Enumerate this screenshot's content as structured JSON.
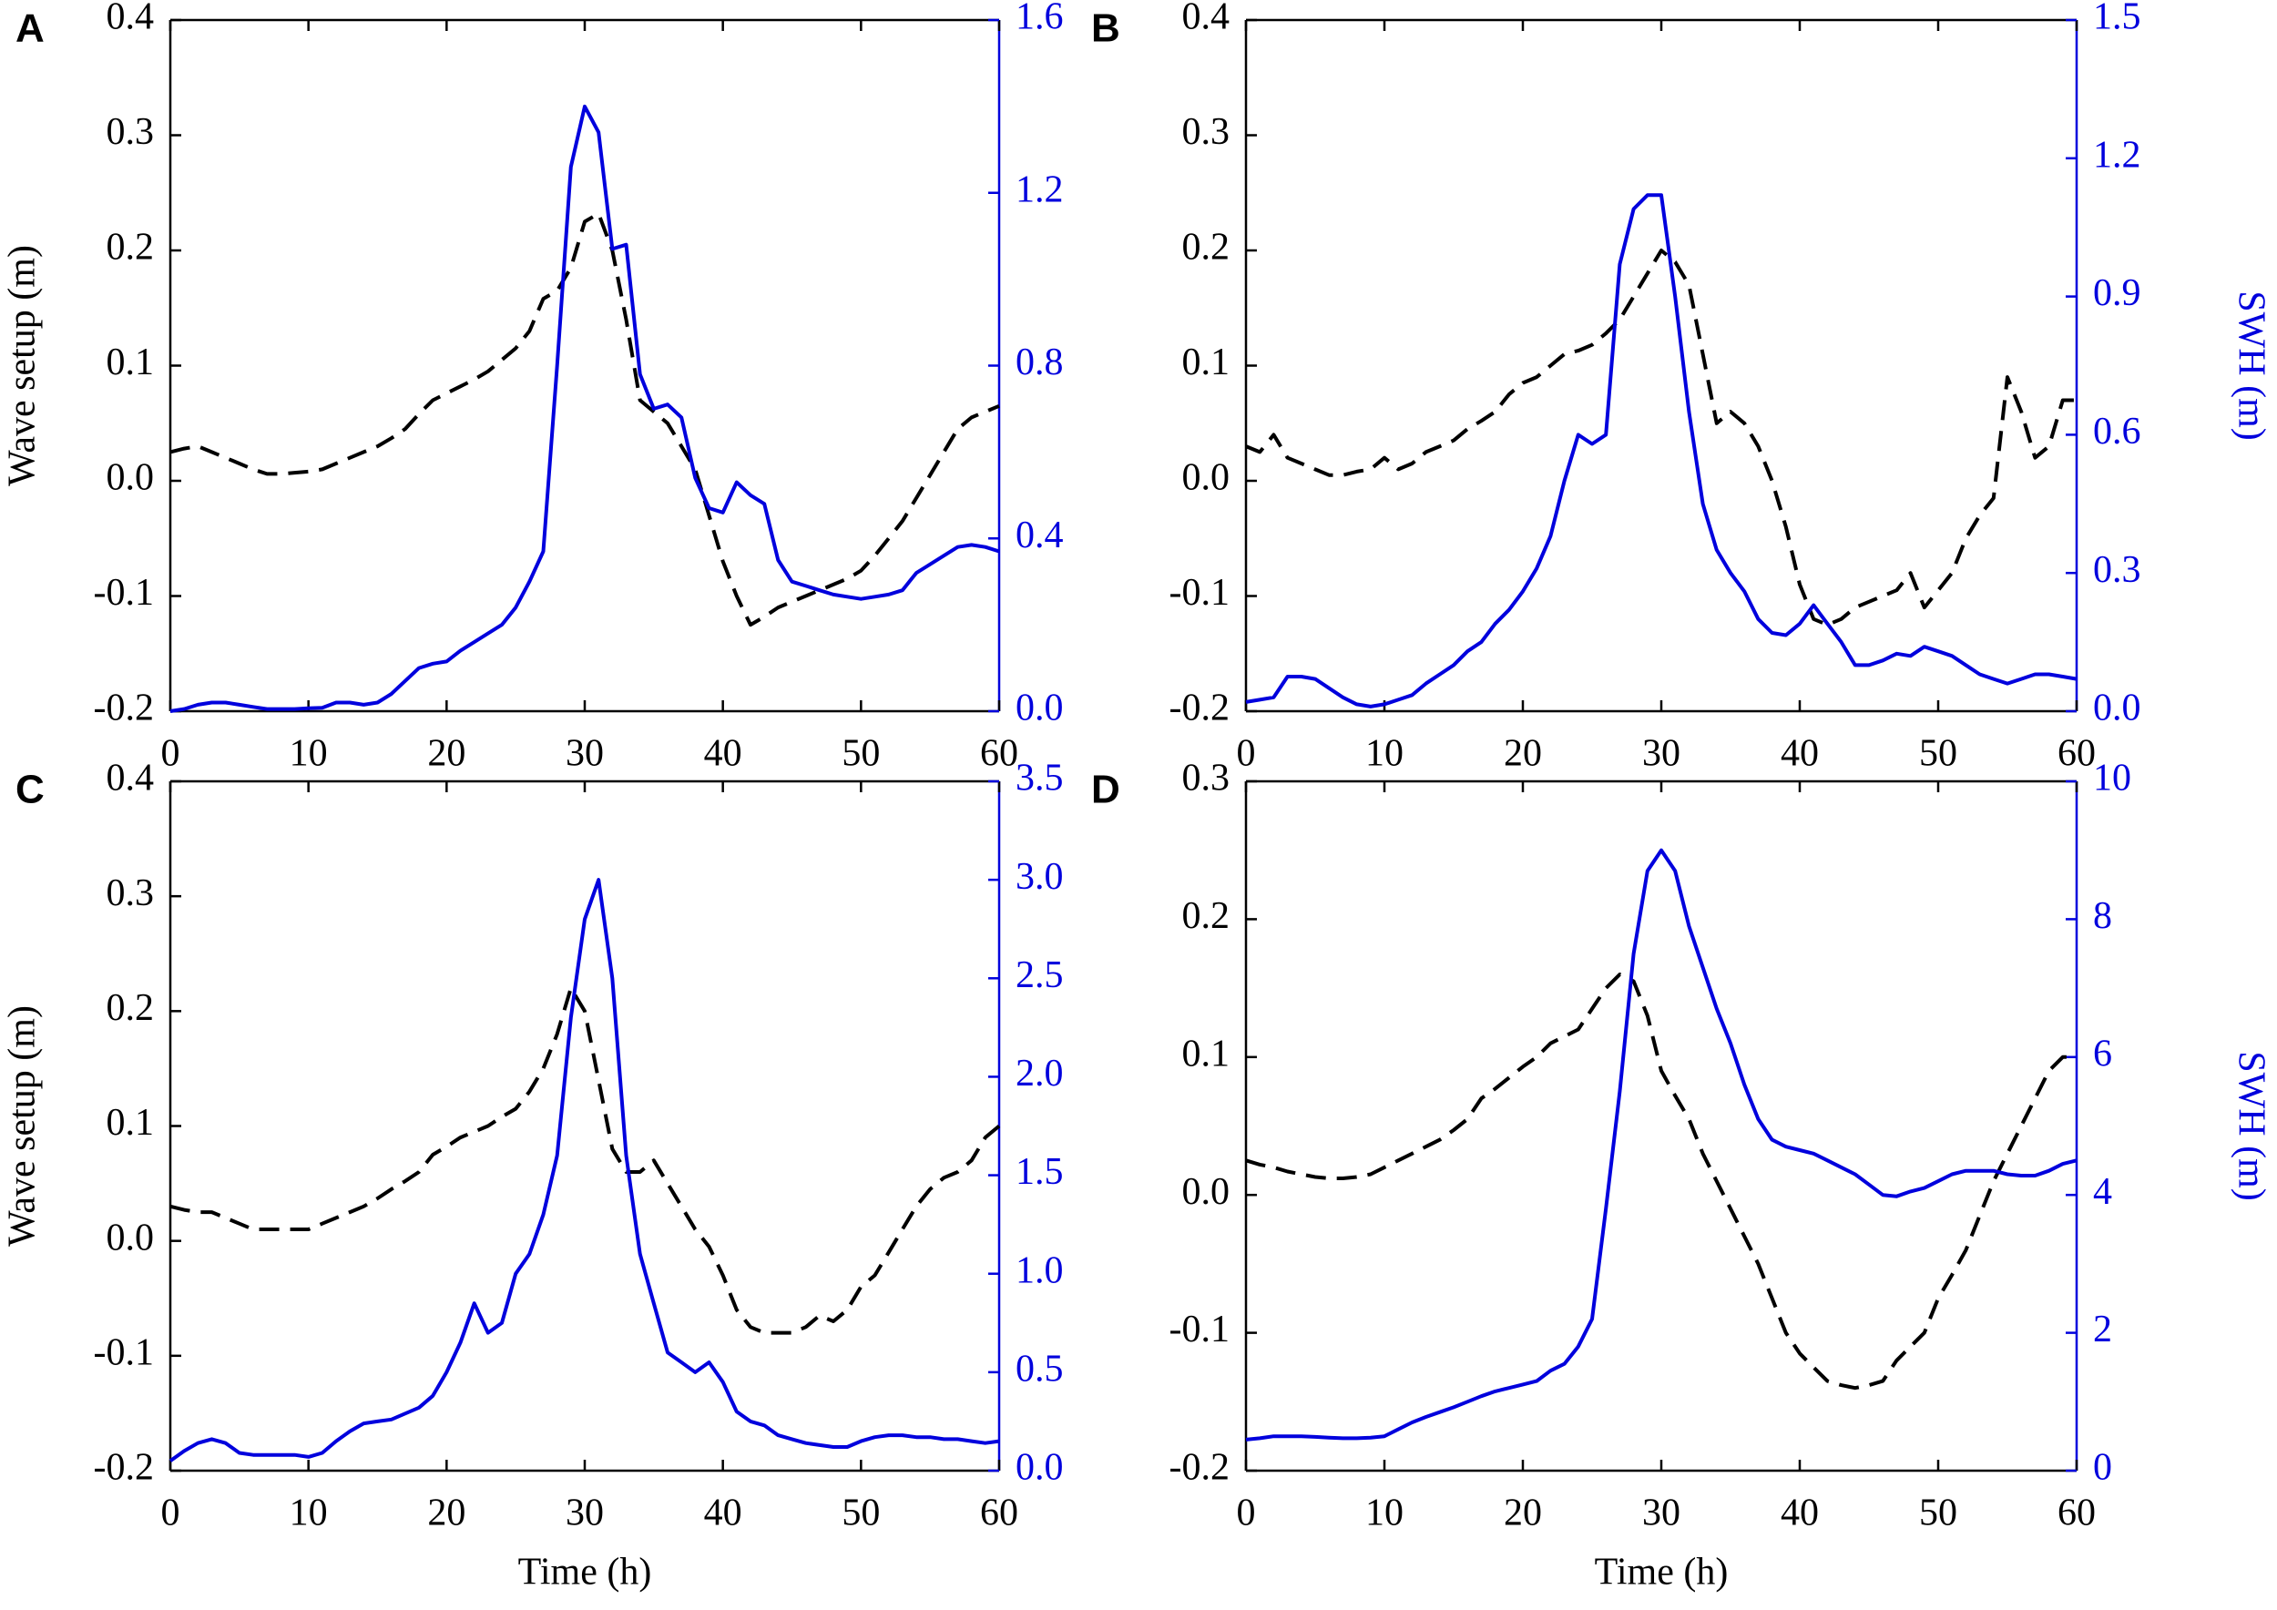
{
  "chart_data": [
    {
      "type": "line",
      "title": "A",
      "ylabel": "Wave setup (m)",
      "x": [
        0,
        1,
        2,
        3,
        4,
        5,
        6,
        7,
        8,
        9,
        10,
        11,
        12,
        13,
        14,
        15,
        16,
        17,
        18,
        19,
        20,
        21,
        22,
        23,
        24,
        25,
        26,
        27,
        28,
        29,
        30,
        31,
        32,
        33,
        34,
        35,
        36,
        37,
        38,
        39,
        40,
        41,
        42,
        43,
        44,
        45,
        46,
        47,
        48,
        49,
        50,
        51,
        52,
        53,
        54,
        55,
        56,
        57,
        58,
        59,
        60
      ],
      "xlim": [
        0,
        60
      ],
      "xticks": [
        0,
        10,
        20,
        30,
        40,
        50,
        60
      ],
      "ylim": [
        -0.2,
        0.4
      ],
      "yticks": [
        -0.2,
        -0.1,
        {
          "value": 0,
          "label": "0.0"
        },
        0.1,
        0.2,
        0.3,
        0.4
      ],
      "y2lim": [
        0,
        1.6
      ],
      "y2ticks": [
        {
          "value": 0,
          "label": "0.0"
        },
        0.4,
        0.8,
        1.2,
        1.6
      ],
      "series": [
        {
          "color": "#000000",
          "style": "dashed",
          "values": [
            0.025,
            0.028,
            0.03,
            0.025,
            0.02,
            0.015,
            0.01,
            0.006,
            0.006,
            0.007,
            0.008,
            0.01,
            0.015,
            0.02,
            0.025,
            0.03,
            0.037,
            0.045,
            0.058,
            0.07,
            0.076,
            0.082,
            0.088,
            0.095,
            0.105,
            0.115,
            0.13,
            0.158,
            0.165,
            0.185,
            0.225,
            0.232,
            0.2,
            0.14,
            0.07,
            0.06,
            0.05,
            0.03,
            0.01,
            -0.03,
            -0.07,
            -0.1,
            -0.125,
            -0.118,
            -0.11,
            -0.105,
            -0.1,
            -0.095,
            -0.09,
            -0.085,
            -0.078,
            -0.065,
            -0.05,
            -0.035,
            -0.015,
            0.005,
            0.025,
            0.045,
            0.055,
            0.06,
            0.065
          ]
        },
        {
          "color": "#0000dd",
          "style": "solid",
          "axis": "y2",
          "values": [
            0,
            0.005,
            0.015,
            0.02,
            0.02,
            0.015,
            0.01,
            0.005,
            0.005,
            0.005,
            0.007,
            0.008,
            0.02,
            0.02,
            0.015,
            0.02,
            0.04,
            0.07,
            0.1,
            0.11,
            0.115,
            0.14,
            0.16,
            0.18,
            0.2,
            0.24,
            0.3,
            0.37,
            0.8,
            1.26,
            1.4,
            1.34,
            1.07,
            1.08,
            0.78,
            0.7,
            0.71,
            0.68,
            0.54,
            0.47,
            0.46,
            0.53,
            0.5,
            0.48,
            0.35,
            0.3,
            0.29,
            0.28,
            0.27,
            0.265,
            0.26,
            0.265,
            0.27,
            0.28,
            0.32,
            0.34,
            0.36,
            0.38,
            0.385,
            0.38,
            0.37
          ]
        }
      ]
    },
    {
      "type": "line",
      "title": "B",
      "y2label": "SWH (m)",
      "x": [
        0,
        1,
        2,
        3,
        4,
        5,
        6,
        7,
        8,
        9,
        10,
        11,
        12,
        13,
        14,
        15,
        16,
        17,
        18,
        19,
        20,
        21,
        22,
        23,
        24,
        25,
        26,
        27,
        28,
        29,
        30,
        31,
        32,
        33,
        34,
        35,
        36,
        37,
        38,
        39,
        40,
        41,
        42,
        43,
        44,
        45,
        46,
        47,
        48,
        49,
        50,
        51,
        52,
        53,
        54,
        55,
        56,
        57,
        58,
        59,
        60
      ],
      "xlim": [
        0,
        60
      ],
      "xticks": [
        0,
        10,
        20,
        30,
        40,
        50,
        60
      ],
      "ylim": [
        -0.2,
        0.4
      ],
      "yticks": [
        -0.2,
        -0.1,
        {
          "value": 0,
          "label": "0.0"
        },
        0.1,
        0.2,
        0.3,
        0.4
      ],
      "y2lim": [
        0,
        1.5
      ],
      "y2ticks": [
        {
          "value": 0,
          "label": "0.0"
        },
        0.3,
        0.6,
        0.9,
        1.2,
        1.5
      ],
      "series": [
        {
          "color": "#000000",
          "style": "dashed",
          "values": [
            0.03,
            0.025,
            0.04,
            0.02,
            0.015,
            0.01,
            0.005,
            0.005,
            0.008,
            0.01,
            0.02,
            0.01,
            0.015,
            0.025,
            0.03,
            0.035,
            0.045,
            0.052,
            0.06,
            0.075,
            0.085,
            0.09,
            0.1,
            0.11,
            0.113,
            0.118,
            0.128,
            0.14,
            0.16,
            0.18,
            0.2,
            0.19,
            0.17,
            0.11,
            0.05,
            0.06,
            0.05,
            0.03,
            0.0,
            -0.04,
            -0.09,
            -0.12,
            -0.125,
            -0.12,
            -0.11,
            -0.105,
            -0.1,
            -0.095,
            -0.08,
            -0.11,
            -0.095,
            -0.08,
            -0.05,
            -0.03,
            -0.015,
            0.09,
            0.06,
            0.02,
            0.03,
            0.07,
            0.07
          ]
        },
        {
          "color": "#0000dd",
          "style": "solid",
          "axis": "y2",
          "values": [
            0.02,
            0.025,
            0.03,
            0.075,
            0.075,
            0.07,
            0.05,
            0.03,
            0.015,
            0.01,
            0.015,
            0.025,
            0.035,
            0.06,
            0.08,
            0.1,
            0.13,
            0.15,
            0.19,
            0.22,
            0.26,
            0.31,
            0.38,
            0.5,
            0.6,
            0.58,
            0.6,
            0.97,
            1.09,
            1.12,
            1.12,
            0.9,
            0.65,
            0.45,
            0.35,
            0.3,
            0.26,
            0.2,
            0.17,
            0.165,
            0.19,
            0.23,
            0.19,
            0.15,
            0.1,
            0.1,
            0.11,
            0.125,
            0.12,
            0.14,
            0.13,
            0.12,
            0.1,
            0.08,
            0.07,
            0.06,
            0.07,
            0.08,
            0.08,
            0.075,
            0.07
          ]
        }
      ]
    },
    {
      "type": "line",
      "title": "C",
      "ylabel": "Wave setup (m)",
      "xlabel": "Time (h)",
      "x": [
        0,
        1,
        2,
        3,
        4,
        5,
        6,
        7,
        8,
        9,
        10,
        11,
        12,
        13,
        14,
        15,
        16,
        17,
        18,
        19,
        20,
        21,
        22,
        23,
        24,
        25,
        26,
        27,
        28,
        29,
        30,
        31,
        32,
        33,
        34,
        35,
        36,
        37,
        38,
        39,
        40,
        41,
        42,
        43,
        44,
        45,
        46,
        47,
        48,
        49,
        50,
        51,
        52,
        53,
        54,
        55,
        56,
        57,
        58,
        59,
        60
      ],
      "xlim": [
        0,
        60
      ],
      "xticks": [
        0,
        10,
        20,
        30,
        40,
        50,
        60
      ],
      "ylim": [
        -0.2,
        0.4
      ],
      "yticks": [
        -0.2,
        -0.1,
        {
          "value": 0,
          "label": "0.0"
        },
        0.1,
        0.2,
        0.3,
        0.4
      ],
      "y2lim": [
        0,
        3.5
      ],
      "y2ticks": [
        {
          "value": 0,
          "label": "0.0"
        },
        0.5,
        {
          "value": 1,
          "label": "1.0"
        },
        1.5,
        {
          "value": 2,
          "label": "2.0"
        },
        2.5,
        {
          "value": 3,
          "label": "3.0"
        },
        3.5
      ],
      "series": [
        {
          "color": "#000000",
          "style": "dashed",
          "values": [
            0.03,
            0.027,
            0.025,
            0.025,
            0.02,
            0.015,
            0.01,
            0.01,
            0.01,
            0.01,
            0.01,
            0.015,
            0.02,
            0.025,
            0.03,
            0.037,
            0.045,
            0.052,
            0.06,
            0.075,
            0.082,
            0.09,
            0.095,
            0.1,
            0.108,
            0.115,
            0.13,
            0.15,
            0.18,
            0.22,
            0.2,
            0.14,
            0.08,
            0.06,
            0.06,
            0.07,
            0.05,
            0.03,
            0.01,
            -0.005,
            -0.03,
            -0.06,
            -0.075,
            -0.08,
            -0.08,
            -0.08,
            -0.075,
            -0.065,
            -0.07,
            -0.06,
            -0.04,
            -0.03,
            -0.01,
            0.01,
            0.03,
            0.045,
            0.055,
            0.06,
            0.07,
            0.09,
            0.1
          ]
        },
        {
          "color": "#0000dd",
          "style": "solid",
          "axis": "y2",
          "values": [
            0.05,
            0.1,
            0.14,
            0.16,
            0.14,
            0.09,
            0.08,
            0.08,
            0.08,
            0.08,
            0.07,
            0.09,
            0.15,
            0.2,
            0.24,
            0.25,
            0.26,
            0.29,
            0.32,
            0.38,
            0.5,
            0.65,
            0.85,
            0.7,
            0.75,
            1.0,
            1.1,
            1.3,
            1.6,
            2.3,
            2.8,
            3.0,
            2.5,
            1.6,
            1.1,
            0.85,
            0.6,
            0.55,
            0.5,
            0.55,
            0.45,
            0.3,
            0.25,
            0.23,
            0.18,
            0.16,
            0.14,
            0.13,
            0.12,
            0.12,
            0.15,
            0.17,
            0.18,
            0.18,
            0.17,
            0.17,
            0.16,
            0.16,
            0.15,
            0.14,
            0.15
          ]
        }
      ]
    },
    {
      "type": "line",
      "title": "D",
      "y2label": "SWH (m)",
      "xlabel": "Time (h)",
      "x": [
        0,
        1,
        2,
        3,
        4,
        5,
        6,
        7,
        8,
        9,
        10,
        11,
        12,
        13,
        14,
        15,
        16,
        17,
        18,
        19,
        20,
        21,
        22,
        23,
        24,
        25,
        26,
        27,
        28,
        29,
        30,
        31,
        32,
        33,
        34,
        35,
        36,
        37,
        38,
        39,
        40,
        41,
        42,
        43,
        44,
        45,
        46,
        47,
        48,
        49,
        50,
        51,
        52,
        53,
        54,
        55,
        56,
        57,
        58,
        59,
        60
      ],
      "xlim": [
        0,
        60
      ],
      "xticks": [
        0,
        10,
        20,
        30,
        40,
        50,
        60
      ],
      "ylim": [
        -0.2,
        0.3
      ],
      "yticks": [
        -0.2,
        -0.1,
        {
          "value": 0,
          "label": "0.0"
        },
        0.1,
        0.2,
        0.3
      ],
      "y2lim": [
        0,
        10
      ],
      "y2ticks": [
        0,
        2,
        4,
        6,
        8,
        10
      ],
      "series": [
        {
          "color": "#000000",
          "style": "dashed",
          "values": [
            0.025,
            0.022,
            0.02,
            0.017,
            0.015,
            0.013,
            0.012,
            0.012,
            0.013,
            0.015,
            0.02,
            0.025,
            0.03,
            0.035,
            0.04,
            0.047,
            0.055,
            0.07,
            0.077,
            0.085,
            0.093,
            0.1,
            0.11,
            0.115,
            0.12,
            0.135,
            0.15,
            0.16,
            0.155,
            0.13,
            0.09,
            0.072,
            0.055,
            0.03,
            0.01,
            -0.01,
            -0.03,
            -0.05,
            -0.075,
            -0.1,
            -0.115,
            -0.125,
            -0.135,
            -0.138,
            -0.14,
            -0.138,
            -0.135,
            -0.12,
            -0.11,
            -0.1,
            -0.075,
            -0.058,
            -0.04,
            -0.015,
            0.01,
            0.03,
            0.05,
            0.07,
            0.09,
            0.1,
            0.1
          ]
        },
        {
          "color": "#0000dd",
          "style": "solid",
          "axis": "y2",
          "values": [
            0.45,
            0.47,
            0.5,
            0.5,
            0.5,
            0.49,
            0.48,
            0.47,
            0.47,
            0.48,
            0.5,
            0.6,
            0.7,
            0.78,
            0.85,
            0.92,
            1.0,
            1.08,
            1.15,
            1.2,
            1.25,
            1.3,
            1.45,
            1.55,
            1.8,
            2.2,
            3.8,
            5.5,
            7.5,
            8.7,
            9.0,
            8.7,
            7.9,
            7.3,
            6.7,
            6.2,
            5.6,
            5.1,
            4.8,
            4.7,
            4.65,
            4.6,
            4.5,
            4.4,
            4.3,
            4.15,
            4.0,
            3.98,
            4.05,
            4.1,
            4.2,
            4.3,
            4.35,
            4.35,
            4.35,
            4.3,
            4.28,
            4.28,
            4.35,
            4.45,
            4.5
          ]
        }
      ]
    }
  ]
}
